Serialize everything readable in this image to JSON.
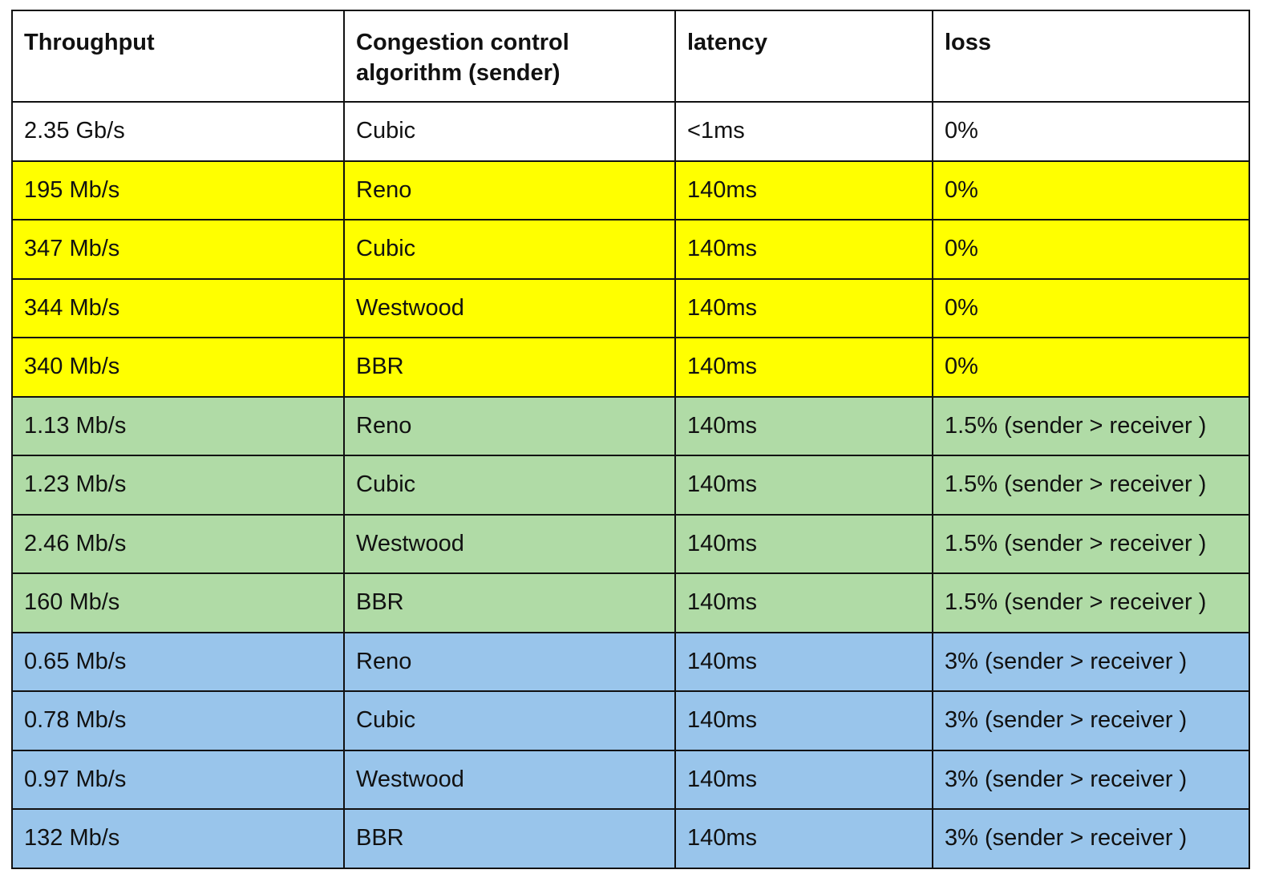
{
  "table": {
    "header": [
      "Throughput",
      "Congestion control algorithm (sender)",
      "latency",
      "loss"
    ],
    "rows": [
      [
        "2.35 Gb/s",
        "Cubic",
        "<1ms",
        "0%"
      ],
      [
        "195 Mb/s",
        "Reno",
        "140ms",
        "0%"
      ],
      [
        "347 Mb/s",
        "Cubic",
        "140ms",
        "0%"
      ],
      [
        "344 Mb/s",
        "Westwood",
        "140ms",
        "0%"
      ],
      [
        "340 Mb/s",
        "BBR",
        "140ms",
        "0%"
      ],
      [
        "1.13 Mb/s",
        "Reno",
        "140ms",
        "1.5% (sender > receiver )"
      ],
      [
        "1.23 Mb/s",
        "Cubic",
        "140ms",
        "1.5% (sender > receiver )"
      ],
      [
        "2.46 Mb/s",
        "Westwood",
        "140ms",
        "1.5% (sender > receiver )"
      ],
      [
        "160 Mb/s",
        "BBR",
        "140ms",
        "1.5% (sender > receiver )"
      ],
      [
        "0.65 Mb/s",
        "Reno",
        "140ms",
        "3% (sender > receiver )"
      ],
      [
        "0.78 Mb/s",
        "Cubic",
        "140ms",
        "3% (sender > receiver )"
      ],
      [
        "0.97 Mb/s",
        "Westwood",
        "140ms",
        "3% (sender > receiver )"
      ],
      [
        "132 Mb/s",
        "BBR",
        "140ms",
        "3% (sender > receiver )"
      ]
    ],
    "row_colors": [
      "#ffffff",
      "#ffff00",
      "#ffff00",
      "#ffff00",
      "#ffff00",
      "#b0dba6",
      "#b0dba6",
      "#b0dba6",
      "#b0dba6",
      "#99c5eb",
      "#99c5eb",
      "#99c5eb",
      "#99c5eb"
    ]
  }
}
